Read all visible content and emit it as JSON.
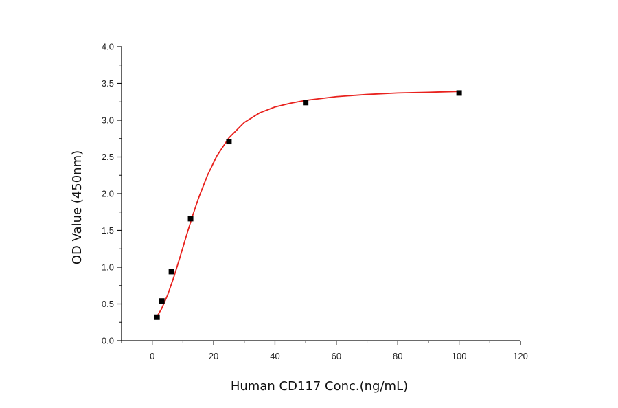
{
  "chart_data": {
    "type": "scatter",
    "title": "",
    "xlabel": "Human CD117 Conc.(ng/mL)",
    "ylabel": "OD Value (450nm)",
    "xlim": [
      -10,
      120
    ],
    "ylim": [
      0,
      4.0
    ],
    "x_ticks": [
      "0",
      "20",
      "40",
      "60",
      "80",
      "100",
      "120"
    ],
    "y_ticks": [
      "0.0",
      "0.5",
      "1.0",
      "1.5",
      "2.0",
      "2.5",
      "3.0",
      "3.5",
      "4.0"
    ],
    "grid": false,
    "legend": "none",
    "series": [
      {
        "kind": "points",
        "color": "#000000",
        "marker": "square",
        "x": [
          1.56,
          3.125,
          6.25,
          12.5,
          25,
          50,
          100
        ],
        "y": [
          0.32,
          0.54,
          0.94,
          1.66,
          2.71,
          3.24,
          3.37
        ]
      },
      {
        "kind": "fit-curve",
        "color": "#e8211d",
        "x": [
          1.56,
          3,
          5,
          7,
          9,
          11,
          13,
          15,
          18,
          21,
          25,
          30,
          35,
          40,
          45,
          50,
          60,
          70,
          80,
          90,
          100
        ],
        "y": [
          0.33,
          0.43,
          0.62,
          0.86,
          1.13,
          1.41,
          1.68,
          1.93,
          2.25,
          2.51,
          2.76,
          2.97,
          3.1,
          3.18,
          3.23,
          3.27,
          3.32,
          3.35,
          3.37,
          3.38,
          3.39
        ]
      }
    ]
  }
}
